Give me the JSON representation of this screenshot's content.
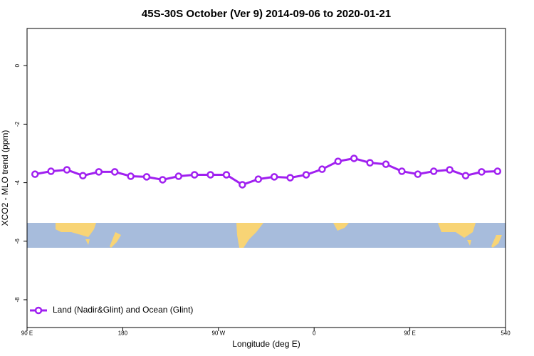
{
  "chart_data": {
    "type": "line",
    "title": "45S-30S October (Ver 9)   2014-09-06 to 2020-01-21",
    "x_label": "Longitude (deg E)",
    "y_label": "XCO2 - MLO trend (ppm)",
    "x": [
      97.5,
      112.5,
      127.5,
      142.5,
      157.5,
      172.5,
      187.5,
      202.5,
      217.5,
      232.5,
      247.5,
      262.5,
      277.5,
      292.5,
      307.5,
      322.5,
      337.5,
      352.5,
      367.5,
      382.5,
      397.5,
      412.5,
      427.5,
      442.5,
      457.5,
      472.5,
      487.5,
      502.5,
      517.5,
      532.5
    ],
    "series": [
      {
        "name": "Land (Nadir&Glint) and Ocean (Glint)",
        "color": "#a020f0",
        "values": [
          -3.71,
          -3.61,
          -3.56,
          -3.76,
          -3.63,
          -3.63,
          -3.78,
          -3.8,
          -3.9,
          -3.78,
          -3.73,
          -3.73,
          -3.73,
          -4.07,
          -3.88,
          -3.8,
          -3.83,
          -3.73,
          -3.54,
          -3.27,
          -3.17,
          -3.32,
          -3.37,
          -3.61,
          -3.71,
          -3.61,
          -3.56,
          -3.76,
          -3.63,
          -3.61
        ]
      }
    ],
    "xlim": [
      90,
      540
    ],
    "xticks": [
      {
        "value": 90,
        "label": "90 E"
      },
      180,
      {
        "value": 270,
        "label": "90 W"
      },
      {
        "value": 360,
        "label": "0"
      },
      {
        "value": 450,
        "label": "90 E"
      },
      540
    ],
    "ylim": [
      -8.95,
      1.27
    ],
    "yticks": [
      0,
      -2,
      -4,
      -6,
      -8
    ],
    "legend": "bottom-left"
  }
}
